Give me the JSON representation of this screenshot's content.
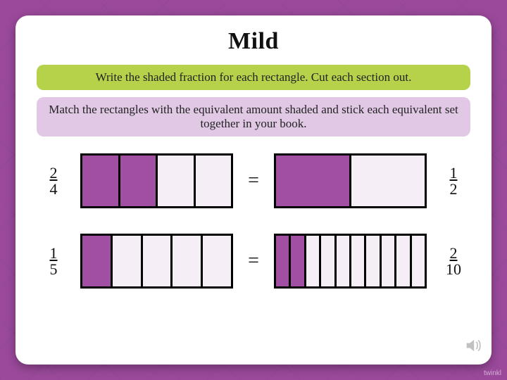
{
  "title": "Mild",
  "instructions": [
    {
      "text": "Write the shaded fraction for each rectangle. Cut each section out.",
      "bg": "#b6d24a"
    },
    {
      "text": "Match the rectangles with the equivalent amount shaded and stick each equivalent set together in your book.",
      "bg": "#e1c9e6"
    }
  ],
  "shade_color": "#a04fa3",
  "empty_color": "#f6eef7",
  "border_color": "#000000",
  "rows": [
    {
      "left_fraction": {
        "num": "2",
        "den": "4"
      },
      "left_bar": {
        "parts": 4,
        "shaded": 2
      },
      "right_bar": {
        "parts": 2,
        "shaded": 1
      },
      "right_fraction": {
        "num": "1",
        "den": "2"
      }
    },
    {
      "left_fraction": {
        "num": "1",
        "den": "5"
      },
      "left_bar": {
        "parts": 5,
        "shaded": 1
      },
      "right_bar": {
        "parts": 10,
        "shaded": 2
      },
      "right_fraction": {
        "num": "2",
        "den": "10"
      }
    }
  ],
  "equals_sign": "=",
  "watermark": "twinkl"
}
